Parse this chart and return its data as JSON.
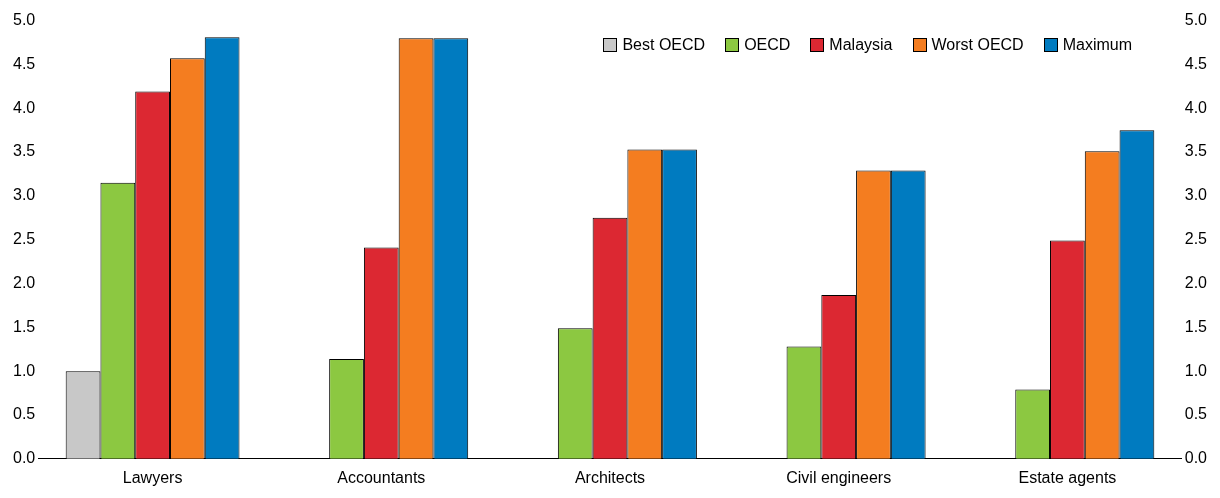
{
  "chart_data": {
    "type": "bar",
    "categories": [
      "Lawyers",
      "Accountants",
      "Architects",
      "Civil engineers",
      "Estate agents"
    ],
    "series": [
      {
        "name": "Best OECD",
        "color": "#c8c8c8",
        "values": [
          1.0,
          0,
          0,
          0,
          0
        ]
      },
      {
        "name": "OECD",
        "color": "#8cc841",
        "values": [
          3.15,
          1.14,
          1.49,
          1.28,
          0.79
        ]
      },
      {
        "name": "Malaysia",
        "color": "#dc2832",
        "values": [
          4.19,
          2.41,
          2.75,
          1.87,
          2.49
        ]
      },
      {
        "name": "Worst OECD",
        "color": "#f47d20",
        "values": [
          4.57,
          4.8,
          3.53,
          3.29,
          3.51
        ]
      },
      {
        "name": "Maximum",
        "color": "#007bc0",
        "values": [
          4.81,
          4.8,
          3.53,
          3.29,
          3.75
        ]
      }
    ],
    "ylim": [
      0,
      5
    ],
    "yticks": [
      {
        "value": 0,
        "label": "0.0"
      },
      0.5,
      {
        "value": 1,
        "label": "1.0"
      },
      1.5,
      {
        "value": 2,
        "label": "2.0"
      },
      2.5,
      {
        "value": 3,
        "label": "3.0"
      },
      3.5,
      {
        "value": 4,
        "label": "4.0"
      },
      4.5,
      {
        "value": 5,
        "label": "5.0"
      }
    ],
    "y2lim": [
      0,
      5
    ],
    "y2ticks": [
      {
        "value": 0,
        "label": "0.0"
      },
      0.5,
      {
        "value": 1,
        "label": "1.0"
      },
      1.5,
      {
        "value": 2,
        "label": "2.0"
      },
      2.5,
      {
        "value": 3,
        "label": "3.0"
      },
      3.5,
      {
        "value": 4,
        "label": "4.0"
      },
      4.5,
      {
        "value": 5,
        "label": "5.0"
      }
    ],
    "grid": false,
    "legend": "top right"
  }
}
